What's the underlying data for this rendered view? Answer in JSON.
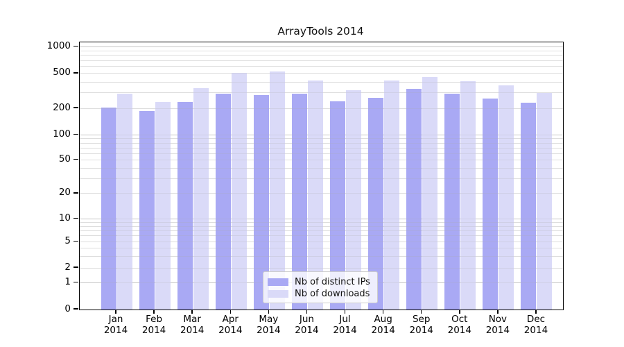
{
  "chart_data": {
    "type": "bar",
    "title": "ArrayTools 2014",
    "categories": [
      "Jan",
      "Feb",
      "Mar",
      "Apr",
      "May",
      "Jun",
      "Jul",
      "Aug",
      "Sep",
      "Oct",
      "Nov",
      "Dec"
    ],
    "category_year": "2014",
    "series": [
      {
        "name": "Nb of distinct IPs",
        "color": "#a9a9f4",
        "values": [
          203,
          185,
          235,
          293,
          282,
          293,
          242,
          262,
          335,
          292,
          261,
          231
        ]
      },
      {
        "name": "Nb of downloads",
        "color": "#dadaf8",
        "values": [
          293,
          236,
          341,
          505,
          524,
          416,
          323,
          415,
          455,
          405,
          366,
          298
        ]
      }
    ],
    "yscale": "symlog",
    "ylim": [
      0,
      1000
    ],
    "y_ticks": [
      {
        "value": 1000,
        "label": "1000"
      },
      {
        "value": 500,
        "label": "500"
      },
      {
        "value": 200,
        "label": "200"
      },
      {
        "value": 100,
        "label": "100"
      },
      {
        "value": 50,
        "label": "50"
      },
      {
        "value": 20,
        "label": "20"
      },
      {
        "value": 10,
        "label": "10"
      },
      {
        "value": 5,
        "label": "5"
      },
      {
        "value": 2,
        "label": "2"
      },
      {
        "value": 1,
        "label": "1"
      },
      {
        "value": 0,
        "label": "0"
      }
    ],
    "grid": true,
    "legend_position": "lower center",
    "grid_colors": {
      "minor": "#ececec",
      "major": "#cfcfcf"
    }
  }
}
